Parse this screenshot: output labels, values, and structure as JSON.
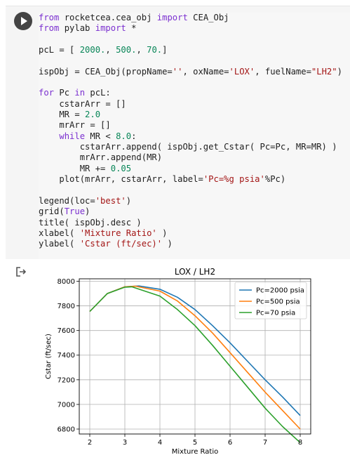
{
  "cell": {
    "run_button": "run-cell",
    "code_lines": [
      [
        {
          "t": "from",
          "c": "kw"
        },
        {
          "t": " rocketcea.cea_obj "
        },
        {
          "t": "import",
          "c": "kw"
        },
        {
          "t": " CEA_Obj"
        }
      ],
      [
        {
          "t": "from",
          "c": "kw"
        },
        {
          "t": " pylab "
        },
        {
          "t": "import",
          "c": "kw"
        },
        {
          "t": " *"
        }
      ],
      [],
      [
        {
          "t": "pcL = [ "
        },
        {
          "t": "2000.",
          "c": "num"
        },
        {
          "t": ", "
        },
        {
          "t": "500.",
          "c": "num"
        },
        {
          "t": ", "
        },
        {
          "t": "70.",
          "c": "num"
        },
        {
          "t": "]"
        }
      ],
      [],
      [
        {
          "t": "ispObj = CEA_Obj(propName="
        },
        {
          "t": "''",
          "c": "str"
        },
        {
          "t": ", oxName="
        },
        {
          "t": "'LOX'",
          "c": "str"
        },
        {
          "t": ", fuelName="
        },
        {
          "t": "\"LH2\"",
          "c": "str"
        },
        {
          "t": ")"
        }
      ],
      [],
      [
        {
          "t": "for",
          "c": "kw"
        },
        {
          "t": " Pc "
        },
        {
          "t": "in",
          "c": "kw"
        },
        {
          "t": " pcL:"
        }
      ],
      [
        {
          "t": "    cstarArr = []"
        }
      ],
      [
        {
          "t": "    MR = "
        },
        {
          "t": "2.0",
          "c": "num"
        }
      ],
      [
        {
          "t": "    mrArr = []"
        }
      ],
      [
        {
          "t": "    "
        },
        {
          "t": "while",
          "c": "kw"
        },
        {
          "t": " MR < "
        },
        {
          "t": "8.0",
          "c": "num"
        },
        {
          "t": ":"
        }
      ],
      [
        {
          "t": "        cstarArr.append( ispObj.get_Cstar( Pc=Pc, MR=MR) )"
        }
      ],
      [
        {
          "t": "        mrArr.append(MR)"
        }
      ],
      [
        {
          "t": "        MR += "
        },
        {
          "t": "0.05",
          "c": "num"
        }
      ],
      [
        {
          "t": "    plot(mrArr, cstarArr, label="
        },
        {
          "t": "'Pc=%g psia'",
          "c": "str"
        },
        {
          "t": "%Pc)"
        }
      ],
      [],
      [
        {
          "t": "legend(loc="
        },
        {
          "t": "'best'",
          "c": "str"
        },
        {
          "t": ")"
        }
      ],
      [
        {
          "t": "grid("
        },
        {
          "t": "True",
          "c": "kw"
        },
        {
          "t": ")"
        }
      ],
      [
        {
          "t": "title( ispObj.desc )"
        }
      ],
      [
        {
          "t": "xlabel( "
        },
        {
          "t": "'Mixture Ratio'",
          "c": "str"
        },
        {
          "t": " )"
        }
      ],
      [
        {
          "t": "ylabel( "
        },
        {
          "t": "'Cstar (ft/sec)'",
          "c": "str"
        },
        {
          "t": " )"
        }
      ],
      [],
      [
        {
          "t": "show()"
        }
      ]
    ]
  },
  "output": {
    "icon": "output-arrow-icon"
  },
  "chart_data": {
    "type": "line",
    "title": "LOX / LH2",
    "xlabel": "Mixture Ratio",
    "ylabel": "Cstar (ft/sec)",
    "xlim": [
      1.7,
      8.3
    ],
    "ylim": [
      6760,
      8020
    ],
    "xticks": [
      2,
      3,
      4,
      5,
      6,
      7,
      8
    ],
    "yticks": [
      6800,
      7000,
      7200,
      7400,
      7600,
      7800,
      8000
    ],
    "grid": true,
    "legend_position": "top-right",
    "series": [
      {
        "name": "Pc=2000 psia",
        "color": "#1f77b4",
        "x": [
          2.0,
          2.5,
          3.0,
          3.4,
          4.0,
          4.5,
          5.0,
          5.5,
          6.0,
          6.5,
          7.0,
          7.5,
          8.0
        ],
        "y": [
          7755,
          7900,
          7955,
          7962,
          7935,
          7870,
          7770,
          7640,
          7500,
          7350,
          7200,
          7060,
          6910
        ]
      },
      {
        "name": "Pc=500 psia",
        "color": "#ff7f0e",
        "x": [
          2.0,
          2.5,
          3.0,
          3.3,
          4.0,
          4.5,
          5.0,
          5.5,
          6.0,
          6.5,
          7.0,
          7.5,
          8.0
        ],
        "y": [
          7755,
          7900,
          7955,
          7960,
          7920,
          7840,
          7720,
          7580,
          7420,
          7260,
          7100,
          6950,
          6800
        ]
      },
      {
        "name": "Pc=70 psia",
        "color": "#2ca02c",
        "x": [
          2.0,
          2.5,
          3.0,
          3.2,
          4.0,
          4.5,
          5.0,
          5.5,
          6.0,
          6.5,
          7.0,
          7.5,
          8.0
        ],
        "y": [
          7755,
          7900,
          7952,
          7955,
          7880,
          7770,
          7640,
          7480,
          7310,
          7140,
          6970,
          6820,
          6690
        ]
      }
    ]
  }
}
